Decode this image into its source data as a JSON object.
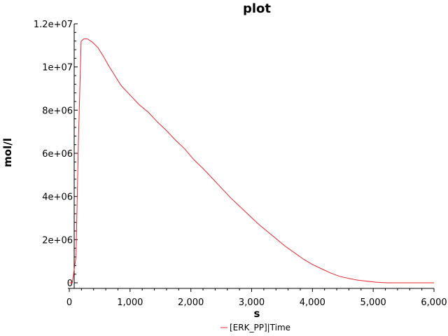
{
  "chart_data": {
    "type": "line",
    "title": "plot",
    "xlabel": "s",
    "ylabel": "mol/l",
    "xlim": [
      0,
      6000
    ],
    "ylim": [
      0,
      12000000
    ],
    "grid": false,
    "legend_position": "bottom",
    "x_ticks": [
      "0",
      "1,000",
      "2,000",
      "3,000",
      "4,000",
      "5,000",
      "6,000"
    ],
    "y_ticks": [
      "0",
      "2e+06",
      "4e+06",
      "6e+06",
      "8e+06",
      "1e+07",
      "1.2e+07"
    ],
    "series": [
      {
        "name": "[ERK_PP]|Time",
        "color": "#e8262e",
        "points": [
          [
            0,
            0
          ],
          [
            50,
            0
          ],
          [
            110,
            1200000
          ],
          [
            150,
            6500000
          ],
          [
            195,
            11200000
          ],
          [
            240,
            11300000
          ],
          [
            300,
            11300000
          ],
          [
            380,
            11150000
          ],
          [
            470,
            10900000
          ],
          [
            560,
            10500000
          ],
          [
            650,
            10050000
          ],
          [
            750,
            9600000
          ],
          [
            850,
            9150000
          ],
          [
            1000,
            8700000
          ],
          [
            1150,
            8250000
          ],
          [
            1300,
            7900000
          ],
          [
            1450,
            7450000
          ],
          [
            1600,
            7050000
          ],
          [
            1750,
            6600000
          ],
          [
            1900,
            6200000
          ],
          [
            2050,
            5700000
          ],
          [
            2200,
            5300000
          ],
          [
            2350,
            4850000
          ],
          [
            2500,
            4400000
          ],
          [
            2650,
            3950000
          ],
          [
            2800,
            3550000
          ],
          [
            2950,
            3150000
          ],
          [
            3100,
            2750000
          ],
          [
            3250,
            2400000
          ],
          [
            3400,
            2050000
          ],
          [
            3550,
            1700000
          ],
          [
            3700,
            1400000
          ],
          [
            3850,
            1100000
          ],
          [
            4000,
            850000
          ],
          [
            4150,
            650000
          ],
          [
            4300,
            450000
          ],
          [
            4450,
            300000
          ],
          [
            4600,
            200000
          ],
          [
            4750,
            120000
          ],
          [
            4900,
            70000
          ],
          [
            5050,
            30000
          ],
          [
            5150,
            10000
          ],
          [
            5250,
            0
          ],
          [
            6000,
            0
          ]
        ]
      }
    ]
  }
}
